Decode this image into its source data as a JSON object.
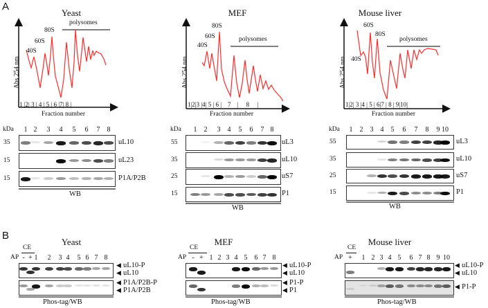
{
  "panel_labels": {
    "a": "A",
    "b": "B"
  },
  "colors": {
    "trace": "#ff2a2a",
    "axis": "#111111",
    "bar": "#555555"
  },
  "profiles": [
    {
      "title": "Yeast",
      "ylabel": "Abs 254 nm",
      "xlabel": "Fraction number",
      "bar_label": "polysomes",
      "peaks": [
        "40S",
        "60S",
        "80S"
      ],
      "fractions": "1 |2| 3 | 4 | 5 | 6 |7| 8 |"
    },
    {
      "title": "MEF",
      "ylabel": "Abs 254 nm",
      "xlabel": "Fraction number",
      "bar_label": "polysomes",
      "peaks": [
        "40S",
        "60S",
        "80S"
      ],
      "fractions": "1|2|3 |4| 5 | 6 |    7    |     8     |"
    },
    {
      "title": "Mouse liver",
      "ylabel": "Abs 254 nm",
      "xlabel": "Fraction number",
      "bar_label": "polysomes",
      "peaks": [
        "40S",
        "60S",
        "80S"
      ],
      "fractions": "1|2| 3 |4 | 5 | 6|7 | 8 | 9|10|"
    }
  ],
  "blots": [
    {
      "kda_label": "kDa",
      "footer": "WB",
      "lanes": [
        "1",
        "2",
        "3",
        "4",
        "5",
        "6",
        "7",
        "8"
      ],
      "rows": [
        {
          "kda": "35",
          "label": "uL10",
          "intensity": [
            0.5,
            0.1,
            0.35,
            0.9,
            0.6,
            0.7,
            0.85,
            0.7
          ]
        },
        {
          "kda": "15",
          "label": "uL23",
          "intensity": [
            0,
            0,
            0,
            0.95,
            0.4,
            0.45,
            0.7,
            0.5
          ]
        },
        {
          "kda": "15",
          "label": "P1A/P2B",
          "intensity": [
            0.9,
            0.1,
            0.2,
            0.4,
            0.25,
            0.3,
            0.35,
            0.3
          ]
        }
      ]
    },
    {
      "kda_label": "kDa",
      "footer": "WB",
      "lanes": [
        "1",
        "2",
        "3",
        "4",
        "5",
        "6",
        "7",
        "8"
      ],
      "rows": [
        {
          "kda": "55",
          "label": "uL3",
          "intensity": [
            0,
            0.05,
            0.3,
            0.6,
            0.75,
            0.5,
            0.8,
            0.95
          ]
        },
        {
          "kda": "35",
          "label": "uL10",
          "intensity": [
            0,
            0,
            0.15,
            0.4,
            0.4,
            0.4,
            0.75,
            0.85
          ]
        },
        {
          "kda": "25",
          "label": "uS7",
          "intensity": [
            0,
            0.1,
            1,
            0.3,
            0.4,
            0.2,
            0.6,
            1
          ]
        },
        {
          "kda": "15",
          "label": "P1",
          "intensity": [
            0.5,
            0.4,
            0.35,
            0.7,
            0.7,
            0.65,
            0.75,
            0.8
          ]
        }
      ]
    },
    {
      "kda_label": "kDa",
      "footer": "WB",
      "lanes": [
        "1",
        "2",
        "3",
        "4",
        "5",
        "6",
        "7",
        "8",
        "9",
        "10"
      ],
      "rows": [
        {
          "kda": "55",
          "label": "uL3",
          "intensity": [
            0,
            0,
            0,
            0.15,
            0.55,
            0.5,
            0.75,
            0.75,
            0.85,
            1
          ]
        },
        {
          "kda": "35",
          "label": "uL10",
          "intensity": [
            0,
            0,
            0,
            0.1,
            0.5,
            0.55,
            0.6,
            0.7,
            0.75,
            0.95
          ]
        },
        {
          "kda": "25",
          "label": "uS7",
          "intensity": [
            0,
            0,
            0.3,
            0.8,
            0.7,
            0.8,
            0.9,
            0.9,
            0.9,
            0.9
          ]
        },
        {
          "kda": "15",
          "label": "P1",
          "intensity": [
            0,
            0,
            0.1,
            0.3,
            0.9,
            0.7,
            0.45,
            0.45,
            0.5,
            0.95
          ]
        }
      ]
    }
  ],
  "phos": [
    {
      "title": "Yeast",
      "ce": "CE",
      "ap": "AP",
      "footer": "Phos-tag/WB",
      "lanes": [
        "-",
        "+",
        "1",
        "2",
        "3",
        "4",
        "5",
        "6",
        "7",
        "8"
      ],
      "rows": [
        {
          "markers": [
            "uL10-P",
            "uL10"
          ],
          "intensity": [
            0.8,
            0.8,
            0.8,
            0.75,
            0.75,
            0.7,
            0.6,
            0.5,
            0.35,
            0.35
          ]
        },
        {
          "markers": [
            "P1A/P2B-P",
            "P1A/P2B"
          ],
          "intensity": [
            0.4,
            0.35,
            0.9,
            0.35,
            0.2,
            0.2,
            0.1,
            0.1,
            0.1,
            0.1
          ]
        }
      ]
    },
    {
      "title": "MEF",
      "ce": "CE",
      "ap": "AP",
      "footer": "Phos-tag/WB",
      "lanes": [
        "-",
        "+",
        "1",
        "2",
        "3",
        "4",
        "5",
        "6",
        "7",
        "8"
      ],
      "rows": [
        {
          "markers": [
            "uL10-P",
            "uL10"
          ],
          "intensity": [
            0.9,
            0.9,
            0,
            0,
            0,
            0.9,
            0.95,
            0.6,
            0.4,
            0.4
          ]
        },
        {
          "markers": [
            "P1-P",
            "P1"
          ],
          "intensity": [
            0.6,
            0.8,
            0,
            0,
            0,
            0.5,
            0.95,
            0.3,
            0.25,
            0.15
          ]
        }
      ]
    },
    {
      "title": "Mouse liver",
      "ce": "CE",
      "ap": "AP",
      "footer": "Phos-tag/WB",
      "lanes": [
        "+",
        "1",
        "2",
        "3",
        "4",
        "5",
        "6",
        "7",
        "8",
        "9",
        "10"
      ],
      "rows": [
        {
          "markers": [
            "uL10-P",
            "uL10"
          ],
          "intensity": [
            0.5,
            0,
            0,
            0.3,
            0.9,
            0.9,
            0.75,
            0.85,
            0.85,
            0.85,
            0.9
          ]
        },
        {
          "markers": [
            "P1-P"
          ],
          "intensity": [
            0.1,
            0.05,
            0.1,
            0.3,
            0.6,
            0.5,
            0.4,
            0.4,
            0.4,
            0.5,
            0.6
          ]
        }
      ]
    }
  ]
}
